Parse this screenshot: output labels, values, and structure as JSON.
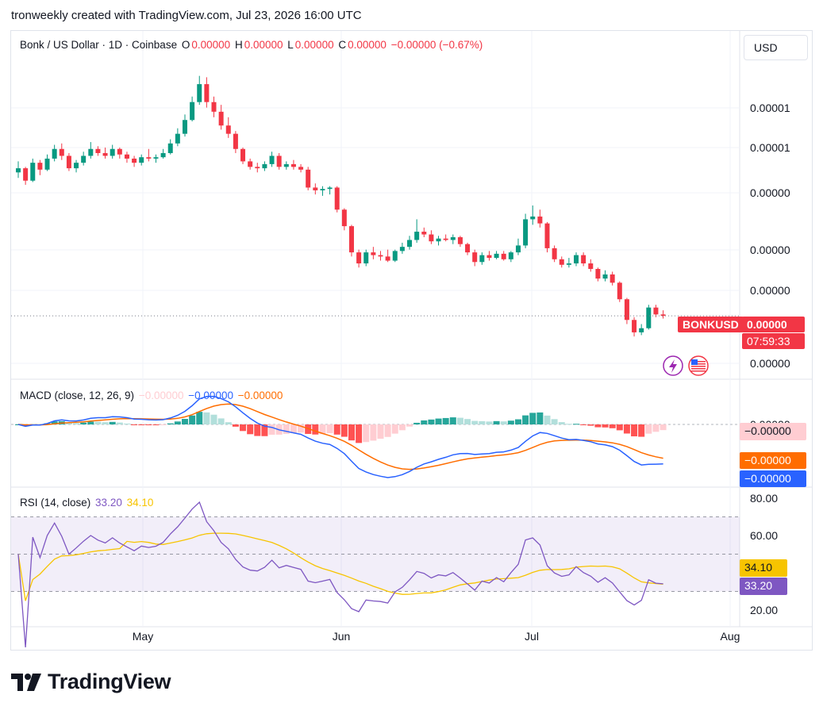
{
  "caption": "tronweekly created with TradingView.com, Jul 23, 2026 16:00 UTC",
  "header": {
    "symbol_desc": "Bonk / US Dollar · 1D · Coinbase",
    "o_label": "O",
    "o_value": "0.00000",
    "h_label": "H",
    "h_value": "0.00000",
    "l_label": "L",
    "l_value": "0.00000",
    "c_label": "C",
    "c_value": "0.00000",
    "change": "−0.00000 (−0.67%)"
  },
  "currency_button": "USD",
  "price_axis": {
    "labels": [
      "0.00001",
      "0.00001",
      "0.00000",
      "0.00000",
      "0.00000",
      "0.00000"
    ]
  },
  "price_tag": {
    "symbol": "BONKUSD",
    "value": "0.00000",
    "countdown": "07:59:33"
  },
  "macd": {
    "label": "MACD (close, 12, 26, 9)",
    "hist_value": "−0.00000",
    "macd_value": "−0.00000",
    "signal_value": "−0.00000",
    "axis_label": "0.00000",
    "tags": {
      "hist": "−0.00000",
      "signal": "−0.00000",
      "macd": "−0.00000"
    }
  },
  "rsi": {
    "label": "RSI (14, close)",
    "rsi_value": "33.20",
    "ma_value": "34.10",
    "axis_labels": [
      "80.00",
      "60.00",
      "20.00"
    ],
    "tags": {
      "ma": "34.10",
      "rsi": "33.20"
    }
  },
  "time_axis": {
    "labels": [
      "May",
      "Jun",
      "Jul",
      "Aug"
    ]
  },
  "brand": "TradingView",
  "colors": {
    "up": "#089981",
    "down": "#f23645",
    "macd_line": "#2962ff",
    "signal_line": "#ff6d00",
    "rsi_line": "#7e57c2",
    "rsi_ma": "#f7c400",
    "hist_up_strong": "#26a69a",
    "hist_up_weak": "#b2dfdb",
    "hist_down_strong": "#ff5252",
    "hist_down_weak": "#ffcdd2"
  },
  "chart_data": [
    {
      "type": "candlestick",
      "title": "Bonk / US Dollar · 1D · Coinbase",
      "x_ticks": [
        "May",
        "Jun",
        "Jul",
        "Aug"
      ],
      "note": "price scale in units of 1e-6 USD (axis prints 0.00000/0.00001)",
      "ohlc": [
        [
          16.6,
          17.4,
          16.2,
          16.9
        ],
        [
          16.9,
          17.0,
          15.7,
          16.0
        ],
        [
          16.0,
          17.6,
          15.9,
          17.3
        ],
        [
          17.3,
          17.5,
          16.4,
          16.8
        ],
        [
          16.8,
          17.9,
          16.7,
          17.6
        ],
        [
          17.6,
          18.6,
          17.4,
          18.3
        ],
        [
          18.3,
          18.7,
          17.5,
          17.8
        ],
        [
          17.8,
          18.0,
          16.7,
          16.9
        ],
        [
          16.9,
          17.5,
          16.6,
          17.3
        ],
        [
          17.3,
          18.1,
          17.1,
          17.8
        ],
        [
          17.8,
          18.8,
          17.6,
          18.3
        ],
        [
          18.3,
          18.5,
          17.8,
          18.0
        ],
        [
          18.0,
          18.4,
          17.6,
          17.8
        ],
        [
          17.8,
          18.6,
          17.6,
          18.3
        ],
        [
          18.3,
          18.4,
          17.6,
          17.9
        ],
        [
          17.9,
          18.1,
          17.3,
          17.6
        ],
        [
          17.6,
          17.8,
          17.0,
          17.3
        ],
        [
          17.3,
          17.9,
          17.1,
          17.7
        ],
        [
          17.7,
          18.3,
          17.4,
          17.6
        ],
        [
          17.6,
          17.9,
          17.3,
          17.7
        ],
        [
          17.7,
          18.3,
          17.6,
          18.0
        ],
        [
          18.0,
          19.0,
          17.9,
          18.7
        ],
        [
          18.7,
          19.8,
          18.5,
          19.4
        ],
        [
          19.4,
          20.8,
          19.2,
          20.4
        ],
        [
          20.4,
          22.1,
          20.3,
          21.7
        ],
        [
          21.7,
          23.6,
          21.5,
          23.0
        ],
        [
          23.0,
          23.5,
          21.3,
          21.7
        ],
        [
          21.7,
          22.1,
          20.6,
          21.0
        ],
        [
          21.0,
          21.5,
          19.7,
          20.0
        ],
        [
          20.0,
          20.6,
          19.1,
          19.4
        ],
        [
          19.4,
          19.6,
          18.0,
          18.3
        ],
        [
          18.3,
          18.4,
          17.2,
          17.4
        ],
        [
          17.4,
          17.6,
          16.8,
          17.0
        ],
        [
          17.0,
          17.3,
          16.6,
          16.9
        ],
        [
          16.9,
          17.4,
          16.7,
          17.2
        ],
        [
          17.2,
          18.1,
          17.0,
          17.8
        ],
        [
          17.8,
          18.0,
          16.8,
          17.0
        ],
        [
          17.0,
          17.4,
          16.8,
          17.2
        ],
        [
          17.2,
          17.5,
          16.8,
          17.0
        ],
        [
          17.0,
          17.2,
          16.6,
          16.8
        ],
        [
          16.8,
          17.0,
          15.3,
          15.5
        ],
        [
          15.5,
          15.8,
          15.0,
          15.3
        ],
        [
          15.3,
          15.6,
          14.9,
          15.4
        ],
        [
          15.4,
          15.6,
          15.0,
          15.5
        ],
        [
          15.5,
          15.6,
          13.7,
          13.9
        ],
        [
          13.9,
          14.0,
          12.4,
          12.7
        ],
        [
          12.7,
          12.8,
          10.5,
          10.8
        ],
        [
          10.8,
          11.0,
          9.7,
          10.0
        ],
        [
          10.0,
          11.0,
          9.8,
          10.8
        ],
        [
          10.8,
          11.2,
          10.3,
          10.6
        ],
        [
          10.6,
          10.9,
          10.2,
          10.5
        ],
        [
          10.5,
          11.0,
          10.1,
          10.2
        ],
        [
          10.2,
          11.0,
          10.1,
          10.9
        ],
        [
          10.9,
          11.5,
          10.7,
          11.2
        ],
        [
          11.2,
          12.0,
          11.0,
          11.7
        ],
        [
          11.7,
          13.2,
          11.5,
          12.3
        ],
        [
          12.3,
          12.6,
          11.9,
          12.1
        ],
        [
          12.1,
          12.4,
          11.4,
          11.6
        ],
        [
          11.6,
          12.0,
          11.3,
          11.8
        ],
        [
          11.8,
          12.1,
          11.6,
          11.7
        ],
        [
          11.7,
          12.1,
          11.4,
          11.9
        ],
        [
          11.9,
          12.0,
          11.2,
          11.4
        ],
        [
          11.4,
          11.5,
          10.6,
          10.8
        ],
        [
          10.8,
          11.0,
          9.8,
          10.1
        ],
        [
          10.1,
          10.8,
          9.9,
          10.6
        ],
        [
          10.6,
          10.9,
          10.2,
          10.4
        ],
        [
          10.4,
          10.9,
          10.3,
          10.7
        ],
        [
          10.7,
          10.9,
          10.2,
          10.3
        ],
        [
          10.3,
          10.9,
          10.1,
          10.8
        ],
        [
          10.8,
          11.8,
          10.6,
          11.3
        ],
        [
          11.3,
          13.6,
          11.1,
          13.2
        ],
        [
          13.2,
          14.2,
          12.8,
          13.4
        ],
        [
          13.4,
          13.9,
          12.6,
          12.9
        ],
        [
          12.9,
          13.0,
          10.8,
          11.1
        ],
        [
          11.1,
          11.3,
          10.1,
          10.3
        ],
        [
          10.3,
          10.5,
          9.7,
          9.9
        ],
        [
          9.9,
          10.4,
          9.7,
          10.0
        ],
        [
          10.0,
          10.8,
          9.8,
          10.6
        ],
        [
          10.6,
          10.8,
          9.8,
          10.0
        ],
        [
          10.0,
          10.3,
          9.4,
          9.6
        ],
        [
          9.6,
          9.7,
          8.7,
          8.9
        ],
        [
          8.9,
          9.5,
          8.7,
          9.2
        ],
        [
          9.2,
          9.4,
          8.4,
          8.6
        ],
        [
          8.6,
          8.7,
          7.2,
          7.4
        ],
        [
          7.4,
          7.5,
          5.6,
          5.9
        ],
        [
          5.9,
          6.1,
          4.7,
          5.0
        ],
        [
          5.0,
          5.6,
          4.8,
          5.3
        ],
        [
          5.3,
          7.0,
          5.2,
          6.8
        ],
        [
          6.8,
          7.0,
          6.1,
          6.3
        ],
        [
          6.3,
          6.6,
          6.0,
          6.2
        ]
      ]
    },
    {
      "type": "bar",
      "title": "MACD (close, 12, 26, 9)",
      "series": [
        {
          "name": "Histogram"
        },
        {
          "name": "MACD"
        },
        {
          "name": "Signal"
        }
      ]
    },
    {
      "type": "line",
      "title": "RSI (14, close)",
      "ylim": [
        20,
        80
      ],
      "series": [
        {
          "name": "RSI"
        },
        {
          "name": "RSI-based MA"
        }
      ]
    }
  ]
}
